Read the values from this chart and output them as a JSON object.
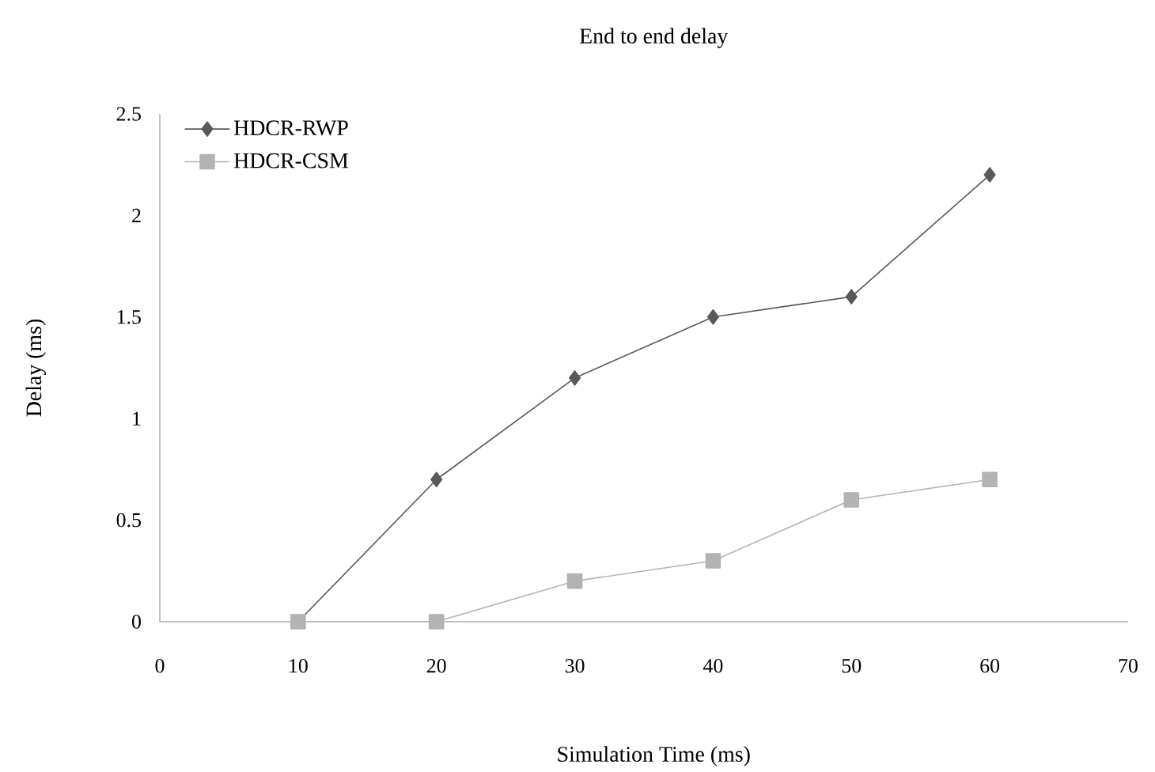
{
  "chart_data": {
    "type": "line",
    "title": "End to end delay",
    "xlabel": "Simulation Time (ms)",
    "ylabel": "Delay (ms)",
    "x": [
      10,
      20,
      30,
      40,
      50,
      60
    ],
    "series": [
      {
        "name": "HDCR-RWP",
        "color": "#595959",
        "marker": "diamond",
        "values": [
          0,
          0.7,
          1.2,
          1.5,
          1.6,
          2.2
        ]
      },
      {
        "name": "HDCR-CSM",
        "color": "#b3b3b3",
        "marker": "square",
        "values": [
          0,
          0,
          0.2,
          0.3,
          0.6,
          0.7
        ]
      }
    ],
    "xlim": [
      0,
      70
    ],
    "xticks": [
      0,
      10,
      20,
      30,
      40,
      50,
      60,
      70
    ],
    "ylim": [
      0,
      2.5
    ],
    "yticks": [
      0,
      0.5,
      1,
      1.5,
      2,
      2.5
    ],
    "grid": false,
    "legend": "top left",
    "line_style": "solid"
  }
}
